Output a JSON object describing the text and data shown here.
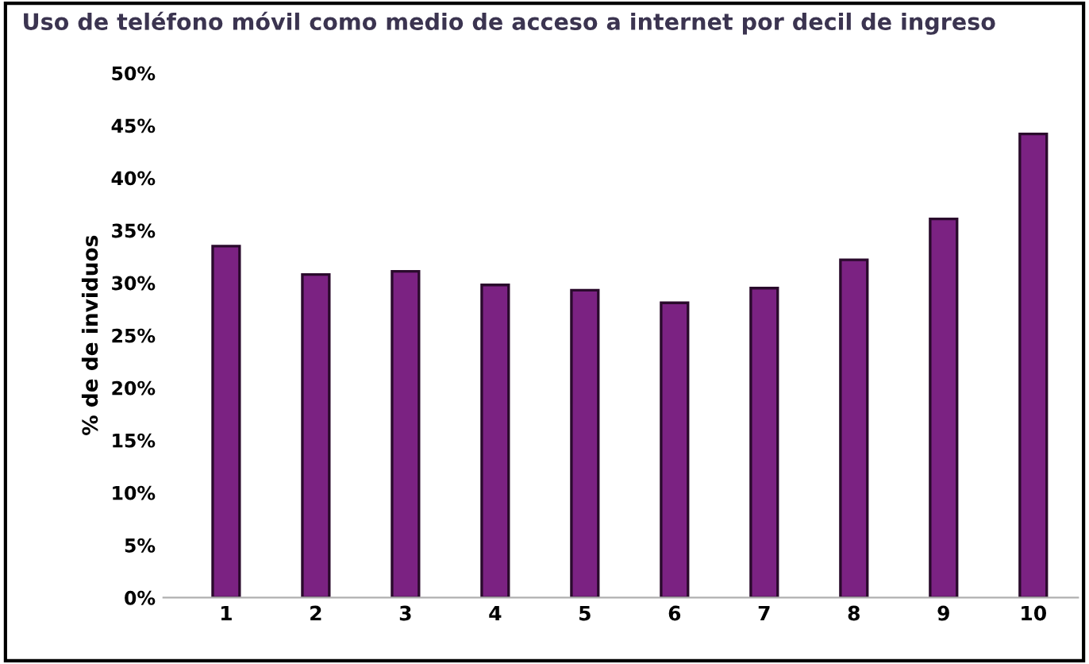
{
  "chart_data": {
    "type": "bar",
    "title": "Uso de teléfono móvil como medio de acceso a internet por decil de ingreso",
    "ylabel": "% de de inviduos",
    "categories": [
      "1",
      "2",
      "3",
      "4",
      "5",
      "6",
      "7",
      "8",
      "9",
      "10"
    ],
    "values": [
      33.5,
      30.8,
      31.1,
      29.8,
      29.3,
      28.1,
      29.5,
      32.2,
      36.1,
      44.2
    ],
    "color": "#7b2282",
    "ylim": [
      0,
      50
    ],
    "yticks": [
      {
        "value": 0,
        "label": "0%"
      },
      {
        "value": 5,
        "label": "5%"
      },
      {
        "value": 10,
        "label": "10%"
      },
      {
        "value": 15,
        "label": "15%"
      },
      {
        "value": 20,
        "label": "20%"
      },
      {
        "value": 25,
        "label": "25%"
      },
      {
        "value": 30,
        "label": "30%"
      },
      {
        "value": 35,
        "label": "35%"
      },
      {
        "value": 40,
        "label": "40%"
      },
      {
        "value": 45,
        "label": "45%"
      },
      {
        "value": 50,
        "label": "50%"
      }
    ],
    "grid": false,
    "legend": false
  }
}
